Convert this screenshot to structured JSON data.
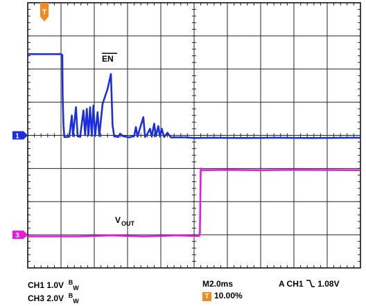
{
  "chart_data": {
    "type": "line",
    "title": "",
    "grid": true,
    "x": {
      "label": "",
      "unit": "ms",
      "range": [
        -1.0,
        19.0
      ],
      "divisions": 10
    },
    "y": {
      "label": "",
      "unit": "div",
      "range": [
        -4,
        4
      ],
      "divisions": 8
    },
    "series": [
      {
        "name": "EN",
        "channel": "1",
        "color": "#1a2ee0",
        "ground_div": 0,
        "points": [
          [
            -1.0,
            2.45
          ],
          [
            1.0,
            2.45
          ],
          [
            1.08,
            2.42
          ],
          [
            1.1,
            1.2
          ],
          [
            1.15,
            0.3
          ],
          [
            1.2,
            -0.05
          ],
          [
            1.3,
            -0.05
          ],
          [
            1.5,
            -0.04
          ],
          [
            1.65,
            0.6
          ],
          [
            1.72,
            -0.02
          ],
          [
            1.9,
            0.85
          ],
          [
            2.0,
            -0.03
          ],
          [
            2.15,
            -0.04
          ],
          [
            2.35,
            0.75
          ],
          [
            2.45,
            0.0
          ],
          [
            2.55,
            0.8
          ],
          [
            2.65,
            0.0
          ],
          [
            2.75,
            0.85
          ],
          [
            2.85,
            -0.02
          ],
          [
            2.95,
            0.9
          ],
          [
            3.05,
            -0.02
          ],
          [
            3.2,
            0.7
          ],
          [
            3.3,
            -0.02
          ],
          [
            3.5,
            0.95
          ],
          [
            3.8,
            1.4
          ],
          [
            4.0,
            1.85
          ],
          [
            4.1,
            0.3
          ],
          [
            4.2,
            -0.03
          ],
          [
            4.45,
            -0.05
          ],
          [
            4.55,
            0.05
          ],
          [
            4.75,
            -0.03
          ],
          [
            5.1,
            -0.06
          ],
          [
            5.4,
            -0.02
          ],
          [
            5.5,
            0.25
          ],
          [
            5.6,
            -0.04
          ],
          [
            5.8,
            0.3
          ],
          [
            5.95,
            0.55
          ],
          [
            6.05,
            -0.05
          ],
          [
            6.2,
            0.05
          ],
          [
            6.35,
            0.2
          ],
          [
            6.45,
            -0.04
          ],
          [
            6.6,
            0.35
          ],
          [
            6.7,
            -0.03
          ],
          [
            6.85,
            0.28
          ],
          [
            6.95,
            -0.04
          ],
          [
            7.05,
            0.2
          ],
          [
            7.2,
            -0.05
          ],
          [
            7.4,
            0.08
          ],
          [
            7.6,
            -0.06
          ],
          [
            8.5,
            -0.06
          ],
          [
            9.0,
            -0.08
          ],
          [
            10.0,
            -0.07
          ],
          [
            12.0,
            -0.08
          ],
          [
            14.0,
            -0.07
          ],
          [
            16.0,
            -0.08
          ],
          [
            19.0,
            -0.07
          ]
        ]
      },
      {
        "name": "VOUT",
        "channel": "3",
        "color": "#e619e0",
        "ground_div": -3,
        "points": [
          [
            -1.0,
            -3.05
          ],
          [
            2.0,
            -3.05
          ],
          [
            4.0,
            -3.02
          ],
          [
            6.0,
            -3.05
          ],
          [
            8.0,
            -3.02
          ],
          [
            9.3,
            -3.04
          ],
          [
            9.35,
            -2.93
          ],
          [
            9.4,
            -1.0
          ],
          [
            9.45,
            -1.05
          ],
          [
            11.0,
            -1.04
          ],
          [
            13.0,
            -1.05
          ],
          [
            15.0,
            -1.04
          ],
          [
            19.0,
            -1.05
          ]
        ]
      }
    ],
    "annotations": [
      {
        "text": "EN",
        "overline": true,
        "near_series": "EN"
      },
      {
        "text": "V",
        "subscript": "OUT",
        "near_series": "VOUT"
      }
    ]
  },
  "markers": {
    "trigger_symbol": "T",
    "trigger_color": "#f28a1f",
    "ch1_label": "1",
    "ch1_color": "#1a2ee0",
    "ch3_label": "3",
    "ch3_color": "#e619e0"
  },
  "readout": {
    "ch1_scale": "CH1  1.0V",
    "ch3_scale": "CH3  2.0V",
    "bw_main": "B",
    "bw_sub": "W",
    "timebase": "M2.0ms",
    "trigger_position": "10.00%",
    "trigger_info_prefix": "A  CH1",
    "trigger_level": "1.08V"
  }
}
